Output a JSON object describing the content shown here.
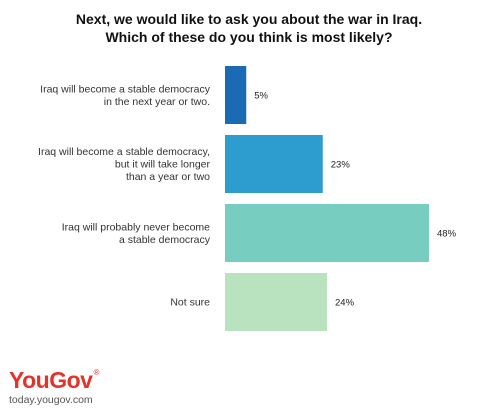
{
  "chart_data": {
    "type": "bar",
    "orientation": "horizontal",
    "title_lines": [
      "Next, we would like to ask you about the war in Iraq.",
      "Which of these do you think is most likely?"
    ],
    "categories": [
      [
        "Iraq will become a stable democracy",
        "in the next year or two."
      ],
      [
        "Iraq will become a stable democracy,",
        "but it will take longer",
        "than a year or two"
      ],
      [
        "Iraq will probably never become",
        "a stable democracy"
      ],
      [
        "Not sure"
      ]
    ],
    "values": [
      5,
      23,
      48,
      24
    ],
    "value_labels": [
      "5%",
      "23%",
      "48%",
      "24%"
    ],
    "colors": [
      "#1a6bb4",
      "#2d9ccf",
      "#78cdc1",
      "#b9e3bf"
    ],
    "xlim": [
      0,
      48
    ],
    "grid": false,
    "legend": "none"
  },
  "brand": {
    "name": "YouGov",
    "mark": "®",
    "url": "today.yougov.com"
  }
}
